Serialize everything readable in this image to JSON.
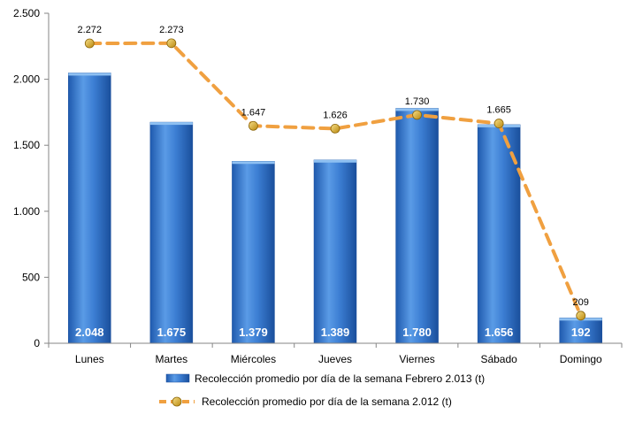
{
  "chart_data": {
    "type": "bar",
    "categories": [
      "Lunes",
      "Martes",
      "Miércoles",
      "Jueves",
      "Viernes",
      "Sábado",
      "Domingo"
    ],
    "series": [
      {
        "name": "Recolección promedio por día de la semana Febrero 2.013 (t)",
        "type": "bar",
        "values": [
          2048,
          1675,
          1379,
          1389,
          1780,
          1656,
          192
        ],
        "labels": [
          "2.048",
          "1.675",
          "1.379",
          "1.389",
          "1.780",
          "1.656",
          "192"
        ],
        "color": "#2E6FC4"
      },
      {
        "name": "Recolección promedio por día de la semana 2.012 (t)",
        "type": "line",
        "values": [
          2272,
          2273,
          1647,
          1626,
          1730,
          1665,
          209
        ],
        "labels": [
          "2.272",
          "2.273",
          "1.647",
          "1.626",
          "1.730",
          "1.665",
          "209"
        ],
        "color": "#F0A040",
        "marker_color": "#D4A017"
      }
    ],
    "ylim": [
      0,
      2500
    ],
    "yticks": [
      0,
      500,
      1000,
      1500,
      2000,
      2500
    ],
    "ytick_labels": [
      "0",
      "500",
      "1.000",
      "1.500",
      "2.000",
      "2.500"
    ],
    "grid": false,
    "legend_position": "bottom"
  }
}
